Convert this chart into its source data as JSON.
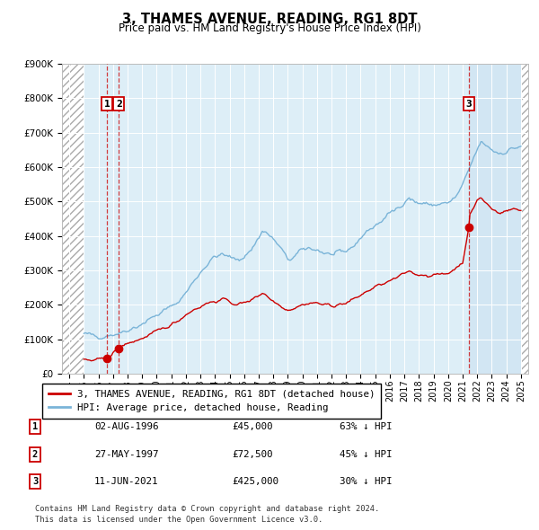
{
  "title": "3, THAMES AVENUE, READING, RG1 8DT",
  "subtitle": "Price paid vs. HM Land Registry's House Price Index (HPI)",
  "legend_line1": "3, THAMES AVENUE, READING, RG1 8DT (detached house)",
  "legend_line2": "HPI: Average price, detached house, Reading",
  "footer1": "Contains HM Land Registry data © Crown copyright and database right 2024.",
  "footer2": "This data is licensed under the Open Government Licence v3.0.",
  "sales": [
    {
      "label": "1",
      "date": "02-AUG-1996",
      "price": 45000,
      "year": 1996.58,
      "pct": "63% ↓ HPI"
    },
    {
      "label": "2",
      "date": "27-MAY-1997",
      "price": 72500,
      "year": 1997.4,
      "pct": "45% ↓ HPI"
    },
    {
      "label": "3",
      "date": "11-JUN-2021",
      "price": 425000,
      "year": 2021.44,
      "pct": "30% ↓ HPI"
    }
  ],
  "hpi_color": "#7ab4d8",
  "price_color": "#cc0000",
  "ylim": [
    0,
    900000
  ],
  "xlim_start": 1993.5,
  "xlim_end": 2025.5,
  "hpi_data_start": 1995.0,
  "hpi_data_end": 2025.0,
  "right_shade_start": 2021.44,
  "table_rows": [
    [
      "1",
      "02-AUG-1996",
      "£45,000",
      "63% ↓ HPI"
    ],
    [
      "2",
      "27-MAY-1997",
      "£72,500",
      "45% ↓ HPI"
    ],
    [
      "3",
      "11-JUN-2021",
      "£425,000",
      "30% ↓ HPI"
    ]
  ]
}
